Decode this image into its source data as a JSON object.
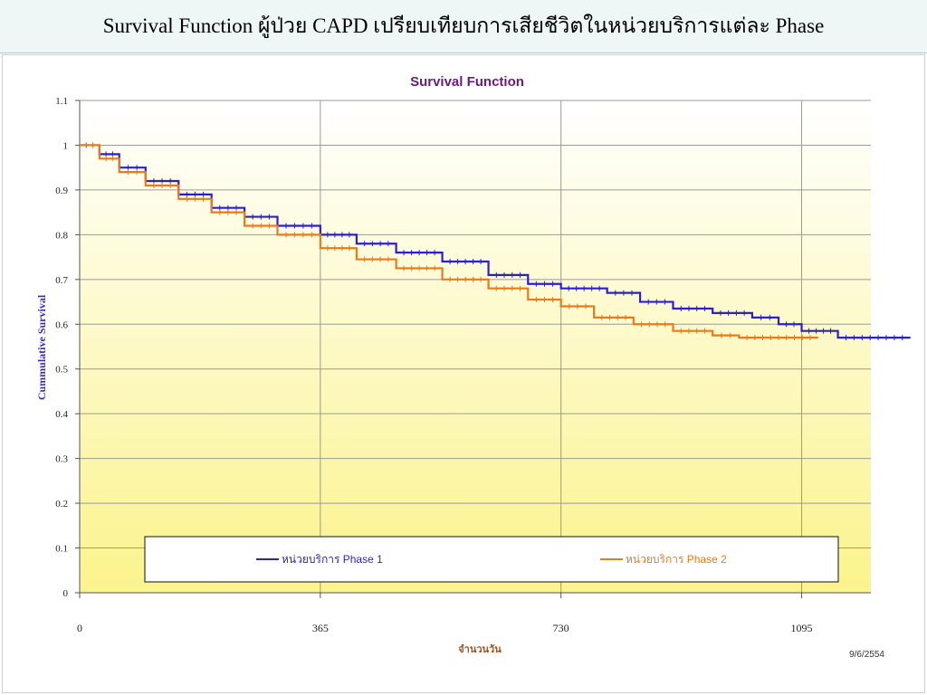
{
  "slide": {
    "title": "Survival Function ผู้ป่วย CAPD เปรียบเทียบการเสียชีวิตในหน่วยบริการแต่ละ Phase"
  },
  "chart_data": {
    "type": "line",
    "title": "Survival Function",
    "xlabel": "จำนวนวัน",
    "ylabel": "Cummulative Survival",
    "xlim": [
      0,
      1200
    ],
    "ylim": [
      0,
      1.1
    ],
    "x_ticks": [
      0,
      365,
      730,
      1095
    ],
    "x_tick_labels": [
      "0",
      "365",
      "730",
      "1095"
    ],
    "y_ticks": [
      0,
      0.1,
      0.2,
      0.3,
      0.4,
      0.5,
      0.6,
      0.7,
      0.8,
      0.9,
      1,
      1.1
    ],
    "y_tick_labels": [
      "0",
      "0.1",
      "0.2",
      "0.3",
      "0.4",
      "0.5",
      "0.6",
      "0.7",
      "0.8",
      "0.9",
      "1",
      "1.1"
    ],
    "grid": "vertical lines at x ticks, horizontal lines at y ticks",
    "legend_position": "bottom-inside",
    "date_note": "9/6/2554",
    "series": [
      {
        "name": "หน่วยบริการ Phase 1",
        "color": "#2b1fd0",
        "x": [
          0,
          30,
          60,
          100,
          150,
          200,
          250,
          300,
          365,
          420,
          480,
          550,
          620,
          680,
          730,
          800,
          850,
          900,
          960,
          1020,
          1060,
          1095,
          1150,
          1260
        ],
        "y": [
          1.0,
          0.98,
          0.95,
          0.92,
          0.89,
          0.86,
          0.84,
          0.82,
          0.8,
          0.78,
          0.76,
          0.74,
          0.71,
          0.69,
          0.68,
          0.67,
          0.65,
          0.635,
          0.625,
          0.615,
          0.6,
          0.585,
          0.57,
          0.57
        ]
      },
      {
        "name": "หน่วยบริการ Phase 2",
        "color": "#e87b1c",
        "x": [
          0,
          30,
          60,
          100,
          150,
          200,
          250,
          300,
          365,
          420,
          480,
          550,
          620,
          680,
          730,
          780,
          840,
          900,
          960,
          1000,
          1120
        ],
        "y": [
          1.0,
          0.97,
          0.94,
          0.91,
          0.88,
          0.85,
          0.82,
          0.8,
          0.77,
          0.745,
          0.725,
          0.7,
          0.68,
          0.655,
          0.64,
          0.615,
          0.6,
          0.585,
          0.575,
          0.57,
          0.57
        ]
      }
    ]
  }
}
